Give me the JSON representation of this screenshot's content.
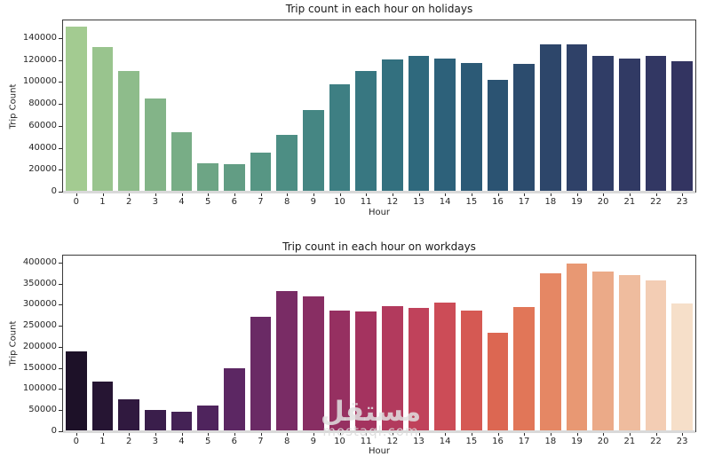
{
  "accent_colors": {
    "axis_line": "#3a3a3a",
    "text": "#262626",
    "background": "#ffffff"
  },
  "watermark": {
    "primary": "مستقل",
    "secondary": "mostaql.com"
  },
  "chart_data": [
    {
      "type": "bar",
      "title": "Trip count in each hour on holidays",
      "xlabel": "Hour",
      "ylabel": "Trip Count",
      "categories": [
        "0",
        "1",
        "2",
        "3",
        "4",
        "5",
        "6",
        "7",
        "8",
        "9",
        "10",
        "11",
        "12",
        "13",
        "14",
        "15",
        "16",
        "17",
        "18",
        "19",
        "20",
        "21",
        "22",
        "23"
      ],
      "values": [
        150000,
        131500,
        110000,
        85000,
        54000,
        26000,
        25000,
        35500,
        51500,
        74500,
        97500,
        110000,
        120500,
        124000,
        121000,
        117500,
        101500,
        116000,
        134000,
        134500,
        124000,
        121500,
        124000,
        118500
      ],
      "ylim": [
        0,
        156000
      ],
      "yticks": [
        0,
        20000,
        40000,
        60000,
        80000,
        100000,
        120000,
        140000
      ],
      "grid": false,
      "legend": null,
      "palette_name": "green-to-navy (crest)",
      "bar_colors": [
        "#a3cb91",
        "#99c48e",
        "#8ebc8b",
        "#83b488",
        "#78ad86",
        "#6da585",
        "#629d84",
        "#579684",
        "#4d8e84",
        "#458683",
        "#3e7f83",
        "#387781",
        "#33707f",
        "#2f697d",
        "#2d617a",
        "#2c5a76",
        "#2b5372",
        "#2c4c6e",
        "#2d466a",
        "#2f4168",
        "#303d66",
        "#313a64",
        "#323763",
        "#333461"
      ]
    },
    {
      "type": "bar",
      "title": "Trip count in each hour on workdays",
      "xlabel": "Hour",
      "ylabel": "Trip Count",
      "categories": [
        "0",
        "1",
        "2",
        "3",
        "4",
        "5",
        "6",
        "7",
        "8",
        "9",
        "10",
        "11",
        "12",
        "13",
        "14",
        "15",
        "16",
        "17",
        "18",
        "19",
        "20",
        "21",
        "22",
        "23"
      ],
      "values": [
        190000,
        118000,
        75000,
        51000,
        45500,
        60000,
        149500,
        271000,
        332000,
        320000,
        286500,
        285000,
        296000,
        291500,
        306000,
        285500,
        233500,
        295500,
        375500,
        398000,
        379000,
        370000,
        358000,
        304000
      ],
      "ylim": [
        0,
        416667
      ],
      "yticks": [
        0,
        50000,
        100000,
        150000,
        200000,
        250000,
        300000,
        350000,
        400000
      ],
      "grid": false,
      "legend": null,
      "palette_name": "darkpurple-to-cream (rocket)",
      "bar_colors": [
        "#1d1128",
        "#261533",
        "#30193f",
        "#3a1e4b",
        "#442255",
        "#4f245d",
        "#5c2763",
        "#6a2a65",
        "#792c65",
        "#882e63",
        "#963061",
        "#a4335f",
        "#b23a5d",
        "#c0425b",
        "#cc4c57",
        "#d55953",
        "#dc6752",
        "#e17658",
        "#e58764",
        "#e89873",
        "#ebaa88",
        "#efbc9e",
        "#f3cdb4",
        "#f6dfc9"
      ]
    }
  ]
}
